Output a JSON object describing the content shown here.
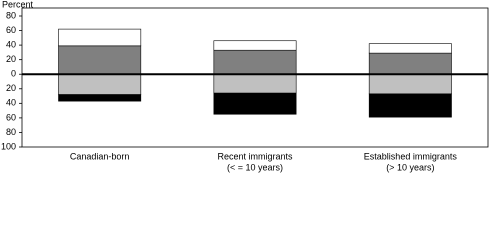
{
  "chart_data": {
    "type": "bar",
    "stacked": true,
    "y_label": "Percent",
    "categories": [
      [
        "Canadian-born"
      ],
      [
        "Recent immigrants",
        "(< = 10 years)"
      ],
      [
        "Established immigrants",
        "(> 10 years)"
      ]
    ],
    "series": [
      {
        "color": "#808080",
        "values": [
          39,
          33,
          29
        ]
      },
      {
        "color": "#ffffff",
        "values": [
          23,
          13,
          13
        ]
      },
      {
        "color": "#c0c0c0",
        "values": [
          -28,
          -26,
          -27
        ]
      },
      {
        "color": "#000000",
        "values": [
          -9,
          -29,
          -32
        ]
      }
    ],
    "ylim": [
      -100,
      80
    ],
    "yticks": [
      {
        "value": -100,
        "label": "100"
      },
      {
        "value": -80,
        "label": "80"
      },
      {
        "value": -60,
        "label": "60"
      },
      {
        "value": -40,
        "label": "40"
      },
      {
        "value": -20,
        "label": "20"
      },
      0,
      20,
      40,
      60,
      80
    ],
    "grid": false
  }
}
